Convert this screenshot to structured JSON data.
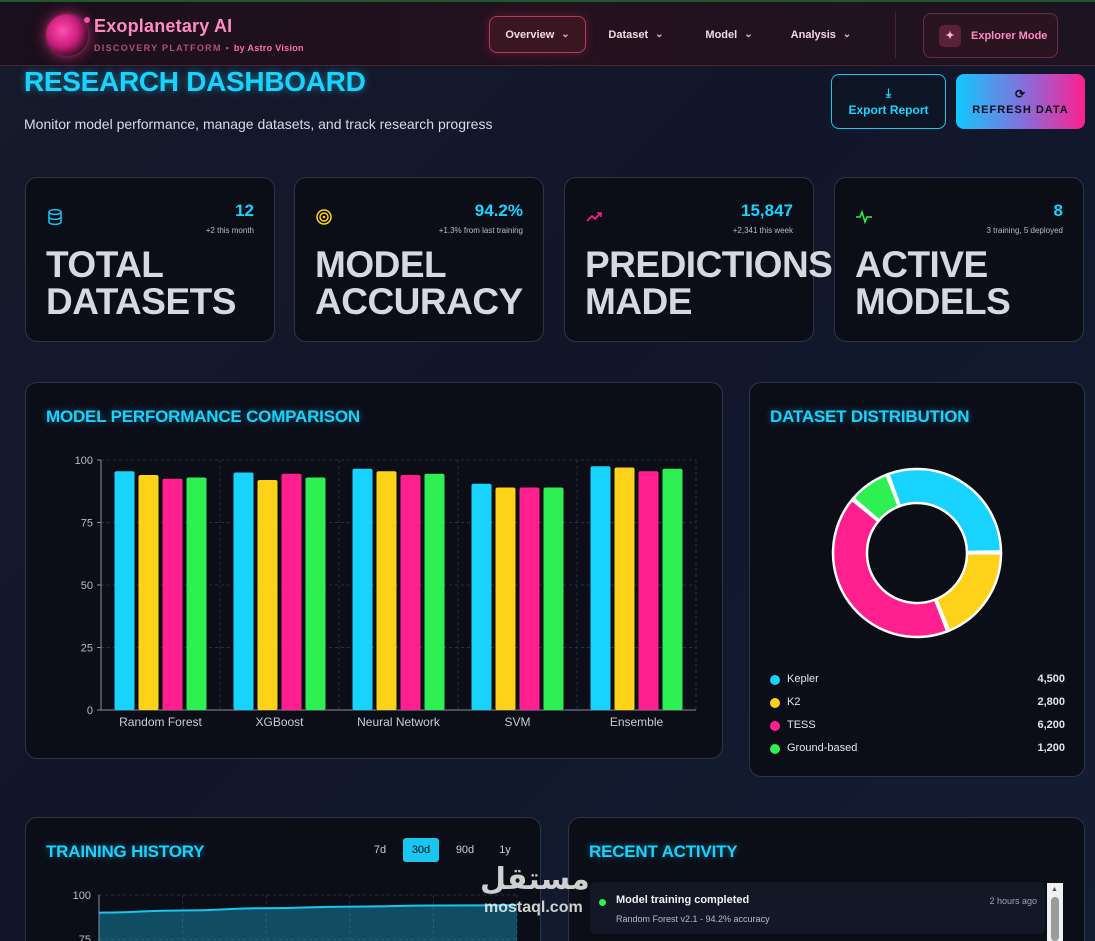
{
  "brand": {
    "title": "Exoplanetary AI",
    "subtitle": "DISCOVERY PLATFORM",
    "separator": "•",
    "byline": "by Astro Vision",
    "logo_icon": "planet-logo"
  },
  "nav": {
    "items": [
      {
        "label": "Overview",
        "active": true
      },
      {
        "label": "Dataset",
        "active": false
      },
      {
        "label": "Model",
        "active": false
      },
      {
        "label": "Analysis",
        "active": false
      }
    ],
    "chevron": "⌄",
    "explorer_label": "Explorer Mode",
    "explorer_icon": "sparkle-icon"
  },
  "page": {
    "title": "RESEARCH DASHBOARD",
    "subtitle": "Monitor model performance, manage datasets, and track research progress",
    "export_label": "Export Report",
    "export_icon": "⤓",
    "refresh_label": "REFRESH DATA",
    "refresh_icon": "⟳"
  },
  "stats": [
    {
      "label": "Total Datasets",
      "value": "12",
      "delta": "+2 this month",
      "icon": "database-icon",
      "color": "#19c6ef"
    },
    {
      "label": "Model Accuracy",
      "value": "94.2%",
      "delta": "+1.3% from last training",
      "icon": "target-icon",
      "color": "#ffd21a"
    },
    {
      "label": "Predictions Made",
      "value": "15,847",
      "delta": "+2,341 this week",
      "icon": "trending-up-icon",
      "color": "#ff1f8f"
    },
    {
      "label": "Active Models",
      "value": "8",
      "delta": "3 training, 5 deployed",
      "icon": "activity-icon",
      "color": "#2ef052"
    }
  ],
  "performance": {
    "title": "MODEL PERFORMANCE COMPARISON"
  },
  "distribution": {
    "title": "DATASET DISTRIBUTION"
  },
  "training": {
    "title": "TRAINING HISTORY",
    "ranges": [
      {
        "label": "7d",
        "active": false
      },
      {
        "label": "30d",
        "active": true
      },
      {
        "label": "90d",
        "active": false
      },
      {
        "label": "1y",
        "active": false
      }
    ]
  },
  "activity": {
    "title": "RECENT ACTIVITY",
    "items": [
      {
        "title": "Model training completed",
        "desc": "Random Forest v2.1 - 94.2% accuracy",
        "time": "2 hours ago"
      }
    ]
  },
  "watermark": {
    "arabic": "مستقل",
    "latin": "mostaql.com"
  },
  "chart_data": [
    {
      "type": "bar",
      "categories": [
        "Random Forest",
        "XGBoost",
        "Neural Network",
        "SVM",
        "Ensemble"
      ],
      "series": [
        {
          "values": [
            95.5,
            95.0,
            96.5,
            90.5,
            97.5
          ],
          "color": "#19d3ff"
        },
        {
          "values": [
            94.0,
            92.0,
            95.5,
            89.0,
            97.0
          ],
          "color": "#ffd21a"
        },
        {
          "values": [
            92.5,
            94.5,
            94.0,
            89.0,
            95.5
          ],
          "color": "#ff1f8f"
        },
        {
          "values": [
            93.0,
            93.0,
            94.5,
            89.0,
            96.5
          ],
          "color": "#2ef052"
        }
      ],
      "ylim": [
        0,
        100
      ],
      "yticks": [
        0,
        25,
        50,
        75,
        100
      ],
      "grid": true
    },
    {
      "type": "pie",
      "donut": true,
      "labels": [
        "Kepler",
        "K2",
        "TESS",
        "Ground-based"
      ],
      "values": [
        4500,
        2800,
        6200,
        1200
      ],
      "display_values": [
        "4,500",
        "2,800",
        "6,200",
        "1,200"
      ],
      "colors": [
        "#19d3ff",
        "#ffd21a",
        "#ff1f8f",
        "#2ef052"
      ],
      "legend": "bottom"
    },
    {
      "type": "area",
      "yticks": [
        75,
        100
      ],
      "values": [
        90,
        91.2,
        92.5,
        93.4,
        94.0,
        94.2
      ],
      "ylim": [
        75,
        100
      ],
      "color": "#19c6ef",
      "grid": true
    }
  ]
}
